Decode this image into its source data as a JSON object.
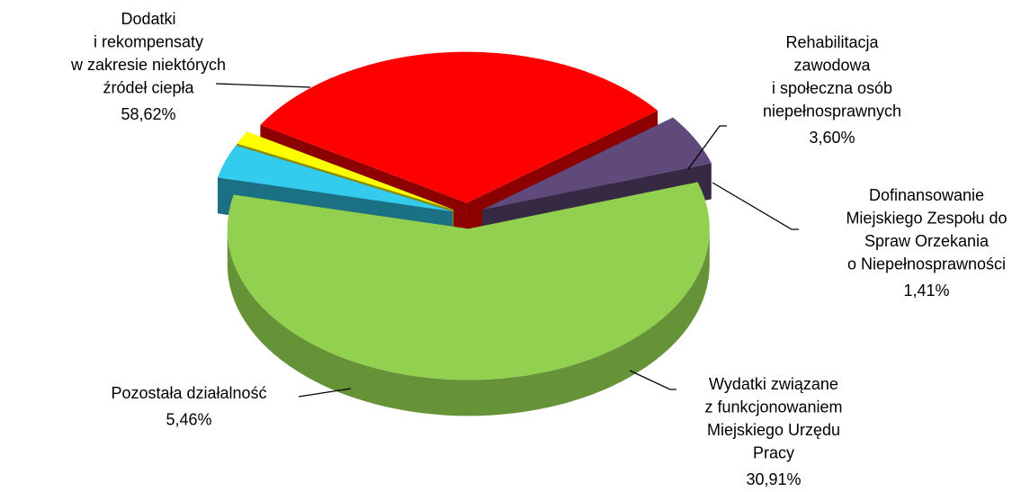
{
  "chart_data": {
    "type": "pie",
    "categories": [
      [
        "Dodatki",
        "i rekompensaty",
        "w zakresie niektórych",
        "źródeł ciepła"
      ],
      [
        "Rehabilitacja",
        "zawodowa",
        "i społeczna osób",
        "niepełnosprawnych"
      ],
      [
        "Dofinansowanie",
        "Miejskiego Zespołu do",
        "Spraw Orzekania",
        "o Niepełnosprawności"
      ],
      [
        "Wydatki związane",
        "z funkcjonowaniem",
        "Miejskiego Urzędu",
        "Pracy"
      ],
      [
        "Pozostała działalność"
      ]
    ],
    "values": [
      58.62,
      3.6,
      1.41,
      30.91,
      5.46
    ],
    "value_labels": [
      "58,62%",
      "3,60%",
      "1,41%",
      "30,91%",
      "5,46%"
    ],
    "colors": [
      "#92d050",
      "#33ccee",
      "#ffff00",
      "#ff0000",
      "#604a7b"
    ]
  }
}
